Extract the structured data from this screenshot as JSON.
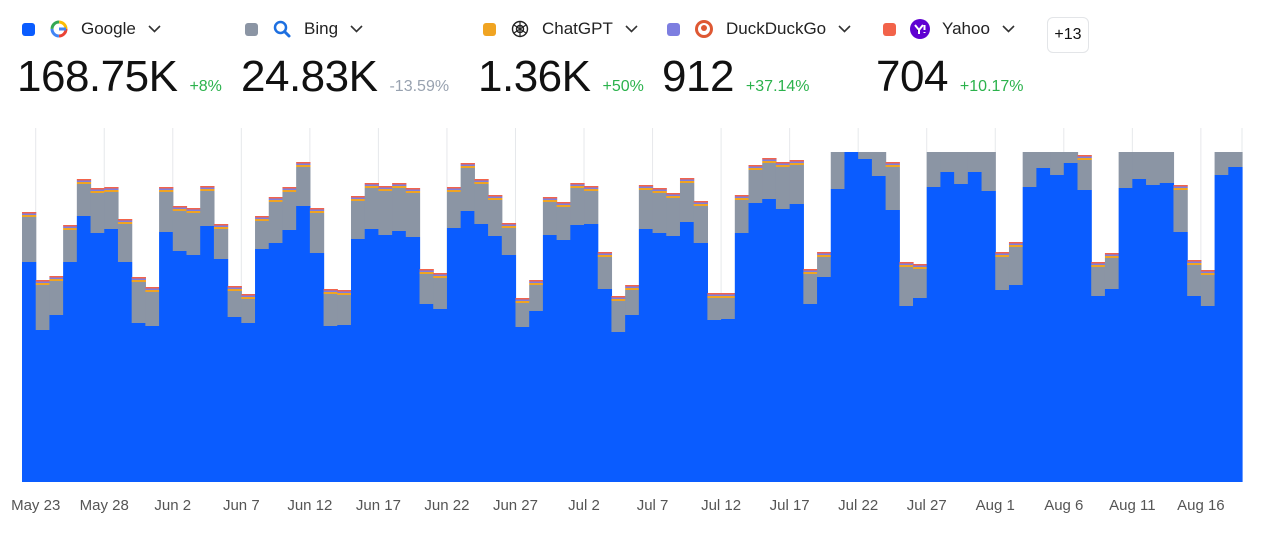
{
  "summary": [
    {
      "total": "168.75K",
      "change": "+8%"
    },
    {
      "total": "24.83K",
      "change": "-13.59%"
    },
    {
      "total": "1.36K",
      "change": "+50%"
    },
    {
      "total": "912",
      "change": "+37.14%"
    },
    {
      "total": "704",
      "change": "+10.17%"
    }
  ],
  "more_sources": "+13",
  "chart_data": {
    "type": "stacked-bar",
    "grid": true,
    "ylim": [
      0,
      3300
    ],
    "categories": [
      null,
      "May 23",
      null,
      null,
      null,
      null,
      "May 28",
      null,
      null,
      null,
      null,
      "Jun 2",
      null,
      null,
      null,
      null,
      "Jun 7",
      null,
      null,
      null,
      null,
      "Jun 12",
      null,
      null,
      null,
      null,
      "Jun 17",
      null,
      null,
      null,
      null,
      "Jun 22",
      null,
      null,
      null,
      null,
      "Jun 27",
      null,
      null,
      null,
      null,
      "Jul 2",
      null,
      null,
      null,
      null,
      "Jul 7",
      null,
      null,
      null,
      null,
      "Jul 12",
      null,
      null,
      null,
      null,
      "Jul 17",
      null,
      null,
      null,
      null,
      "Jul 22",
      null,
      null,
      null,
      null,
      "Jul 27",
      null,
      null,
      null,
      null,
      "Aug 1",
      null,
      null,
      null,
      null,
      "Aug 6",
      null,
      null,
      null,
      null,
      "Aug 11",
      null,
      null,
      null,
      null,
      "Aug 16",
      null,
      null
    ],
    "series": [
      {
        "name": "Google",
        "color": "#0a5cff",
        "values": [
          2200,
          1520,
          1670,
          2200,
          2660,
          2490,
          2530,
          2200,
          1590,
          1560,
          2500,
          2310,
          2270,
          2560,
          2230,
          1650,
          1590,
          2330,
          2390,
          2520,
          2760,
          2290,
          1560,
          1570,
          2430,
          2530,
          2470,
          2510,
          2450,
          1780,
          1730,
          2540,
          2710,
          2580,
          2460,
          2270,
          1550,
          1710,
          2470,
          2420,
          2570,
          2580,
          1930,
          1500,
          1670,
          2530,
          2490,
          2460,
          2600,
          2390,
          1620,
          1630,
          2490,
          2790,
          2830,
          2730,
          2780,
          1780,
          2050,
          2930,
          3300,
          3230,
          3060,
          2720,
          1760,
          1840,
          2950,
          3100,
          2980,
          3100,
          2910,
          1920,
          1970,
          2950,
          3140,
          3070,
          3190,
          2920,
          1860,
          1930,
          2940,
          3030,
          2970,
          2990,
          2500,
          1860,
          1760,
          3070,
          3150
        ]
      },
      {
        "name": "Bing",
        "color": "#8b95a4",
        "values": [
          450,
          450,
          340,
          320,
          320,
          400,
          370,
          380,
          410,
          340,
          400,
          400,
          420,
          350,
          300,
          260,
          240,
          280,
          410,
          380,
          390,
          400,
          320,
          300,
          380,
          410,
          440,
          430,
          440,
          300,
          310,
          360,
          430,
          400,
          360,
          270,
          240,
          260,
          330,
          330,
          370,
          330,
          320,
          310,
          250,
          390,
          400,
          380,
          390,
          370,
          220,
          210,
          330,
          330,
          360,
          420,
          390,
          300,
          200,
          370,
          0,
          70,
          240,
          430,
          390,
          290,
          350,
          200,
          320,
          200,
          390,
          330,
          380,
          350,
          160,
          230,
          110,
          300,
          290,
          310,
          360,
          270,
          330,
          310,
          420,
          310,
          310,
          230,
          150
        ]
      },
      {
        "name": "ChatGPT",
        "color": "#f0a422",
        "values": [
          20,
          20,
          20,
          20,
          20,
          20,
          20,
          20,
          20,
          20,
          20,
          20,
          20,
          20,
          20,
          20,
          20,
          20,
          20,
          20,
          20,
          20,
          20,
          20,
          20,
          20,
          20,
          20,
          20,
          20,
          20,
          20,
          20,
          20,
          20,
          20,
          20,
          20,
          20,
          20,
          20,
          20,
          20,
          20,
          20,
          20,
          20,
          20,
          20,
          20,
          20,
          20,
          20,
          20,
          20,
          20,
          20,
          20,
          20,
          0,
          0,
          0,
          0,
          20,
          20,
          20,
          0,
          0,
          0,
          0,
          0,
          20,
          20,
          0,
          0,
          0,
          0,
          20,
          20,
          20,
          0,
          0,
          0,
          0,
          20,
          20,
          20,
          0,
          0
        ]
      },
      {
        "name": "DuckDuckGo",
        "color": "#7d7ee0",
        "values": [
          15,
          15,
          15,
          15,
          15,
          15,
          15,
          15,
          15,
          15,
          15,
          15,
          15,
          15,
          15,
          15,
          15,
          15,
          15,
          15,
          15,
          15,
          15,
          15,
          15,
          15,
          15,
          15,
          15,
          15,
          15,
          15,
          15,
          15,
          15,
          15,
          15,
          15,
          15,
          15,
          15,
          15,
          15,
          15,
          15,
          15,
          15,
          15,
          15,
          15,
          15,
          15,
          15,
          15,
          15,
          15,
          15,
          15,
          15,
          0,
          0,
          0,
          0,
          15,
          15,
          15,
          0,
          0,
          0,
          0,
          0,
          15,
          15,
          0,
          0,
          0,
          0,
          15,
          15,
          15,
          0,
          0,
          0,
          0,
          15,
          15,
          15,
          0,
          0
        ]
      },
      {
        "name": "Yahoo",
        "color": "#f2634a",
        "values": [
          15,
          15,
          15,
          15,
          15,
          15,
          15,
          15,
          15,
          15,
          15,
          15,
          15,
          15,
          15,
          15,
          15,
          15,
          15,
          15,
          15,
          15,
          15,
          15,
          15,
          15,
          15,
          15,
          15,
          15,
          15,
          15,
          15,
          15,
          15,
          15,
          15,
          15,
          15,
          15,
          15,
          15,
          15,
          15,
          15,
          15,
          15,
          15,
          15,
          15,
          15,
          15,
          15,
          15,
          15,
          15,
          15,
          15,
          15,
          0,
          0,
          0,
          0,
          15,
          15,
          15,
          0,
          0,
          0,
          0,
          0,
          15,
          15,
          0,
          0,
          0,
          0,
          15,
          15,
          15,
          0,
          0,
          0,
          0,
          15,
          15,
          15,
          0,
          0
        ]
      }
    ]
  }
}
